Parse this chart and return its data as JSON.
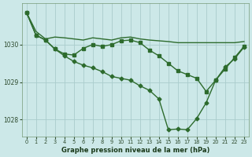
{
  "background_color": "#cce8e8",
  "grid_color": "#aacccc",
  "line_color": "#2d6b2d",
  "text_color": "#2d4a2d",
  "label_color": "#1a3a1a",
  "xlabel": "Graphe pression niveau de la mer (hPa)",
  "xlim": [
    -0.5,
    23.5
  ],
  "ylim": [
    1027.55,
    1031.1
  ],
  "yticks": [
    1028,
    1029,
    1030
  ],
  "xticks": [
    0,
    1,
    2,
    3,
    4,
    5,
    6,
    7,
    8,
    9,
    10,
    11,
    12,
    13,
    14,
    15,
    16,
    17,
    18,
    19,
    20,
    21,
    22,
    23
  ],
  "series": [
    {
      "x": [
        0,
        1,
        2,
        3,
        4,
        5,
        6,
        7,
        8,
        9,
        10,
        11,
        12,
        13,
        14,
        15,
        16,
        17,
        18,
        19,
        20,
        21,
        22,
        23
      ],
      "y": [
        1030.85,
        1030.35,
        1030.15,
        1030.2,
        1030.18,
        1030.15,
        1030.12,
        1030.18,
        1030.15,
        1030.12,
        1030.18,
        1030.2,
        1030.15,
        1030.12,
        1030.1,
        1030.08,
        1030.05,
        1030.05,
        1030.05,
        1030.05,
        1030.05,
        1030.05,
        1030.05,
        1030.08
      ],
      "marker": null,
      "markersize": 0,
      "linewidth": 1.0
    },
    {
      "x": [
        0,
        1,
        2,
        3,
        4,
        5,
        6,
        7,
        8,
        9,
        10,
        11,
        12,
        13,
        14,
        15,
        16,
        17,
        18,
        19,
        20,
        21,
        22,
        23
      ],
      "y": [
        1030.85,
        1030.25,
        1030.12,
        1029.88,
        1029.75,
        1029.72,
        1029.9,
        1030.0,
        1029.95,
        1030.0,
        1030.1,
        1030.12,
        1030.05,
        1029.85,
        1029.7,
        1029.5,
        1029.3,
        1029.2,
        1029.1,
        1028.75,
        1029.05,
        1029.35,
        1029.65,
        1029.95
      ],
      "marker": "s",
      "markersize": 2.2,
      "linewidth": 1.0
    },
    {
      "x": [
        0,
        1,
        2,
        3,
        4,
        5,
        6,
        7,
        8,
        9,
        10,
        11,
        12,
        13,
        14,
        15,
        16,
        17,
        18,
        19,
        20,
        21,
        22,
        23
      ],
      "y": [
        1030.85,
        1030.25,
        1030.12,
        1029.88,
        1029.7,
        1029.55,
        1029.45,
        1029.38,
        1029.28,
        1029.15,
        1029.1,
        1029.05,
        1028.9,
        1028.78,
        1028.55,
        1027.73,
        1027.75,
        1027.73,
        1028.03,
        1028.45,
        1029.05,
        1029.4,
        1029.62,
        1029.93
      ],
      "marker": "D",
      "markersize": 2.5,
      "linewidth": 1.0
    }
  ]
}
